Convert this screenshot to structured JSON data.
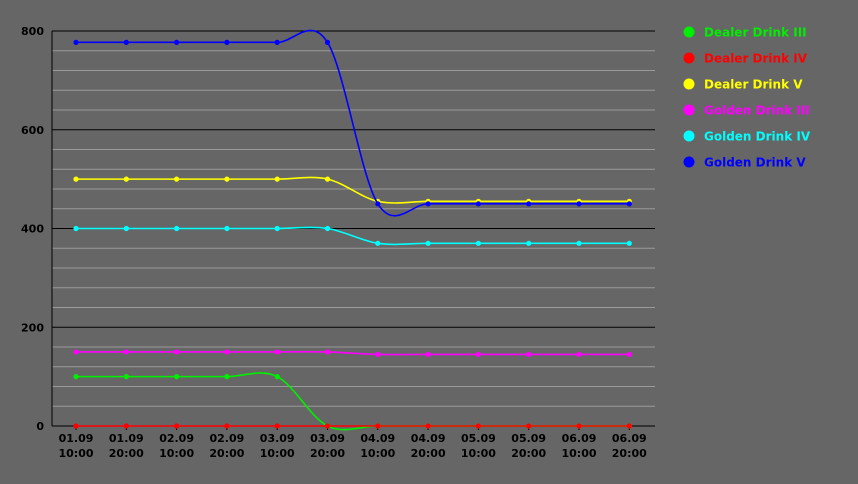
{
  "chart_data": {
    "type": "line",
    "categories": [
      [
        "01.09",
        "10:00"
      ],
      [
        "01.09",
        "20:00"
      ],
      [
        "02.09",
        "10:00"
      ],
      [
        "02.09",
        "20:00"
      ],
      [
        "03.09",
        "10:00"
      ],
      [
        "03.09",
        "20:00"
      ],
      [
        "04.09",
        "10:00"
      ],
      [
        "04.09",
        "20:00"
      ],
      [
        "05.09",
        "10:00"
      ],
      [
        "05.09",
        "20:00"
      ],
      [
        "06.09",
        "10:00"
      ],
      [
        "06.09",
        "20:00"
      ]
    ],
    "ylim": [
      0,
      800
    ],
    "yticks": [
      0,
      200,
      400,
      600,
      800
    ],
    "grid": true,
    "legend": "right",
    "series": [
      {
        "name": "Dealer Drink III",
        "color": "#00ee00",
        "values": [
          100,
          100,
          100,
          100,
          100,
          0,
          0,
          0,
          0,
          0,
          0,
          0
        ]
      },
      {
        "name": "Dealer Drink IV",
        "color": "#ff0000",
        "values": [
          0,
          0,
          0,
          0,
          0,
          0,
          0,
          0,
          0,
          0,
          0,
          0
        ]
      },
      {
        "name": "Dealer Drink V",
        "color": "#ffff00",
        "values": [
          500,
          500,
          500,
          500,
          500,
          500,
          455,
          455,
          455,
          455,
          455,
          455
        ]
      },
      {
        "name": "Golden Drink III",
        "color": "#ff00ff",
        "values": [
          150,
          150,
          150,
          150,
          150,
          150,
          145,
          145,
          145,
          145,
          145,
          145
        ]
      },
      {
        "name": "Golden Drink IV",
        "color": "#00ffff",
        "values": [
          400,
          400,
          400,
          400,
          400,
          400,
          370,
          370,
          370,
          370,
          370,
          370
        ]
      },
      {
        "name": "Golden Drink V",
        "color": "#0000ff",
        "values": [
          777,
          777,
          777,
          777,
          777,
          777,
          450,
          450,
          450,
          450,
          450,
          450
        ]
      }
    ]
  }
}
